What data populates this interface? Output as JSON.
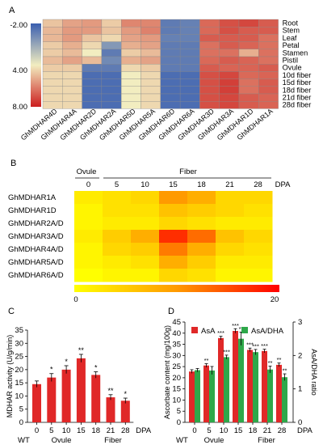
{
  "panels": {
    "a": "A",
    "b": "B",
    "c": "C",
    "d": "D"
  },
  "panel_a": {
    "colorbar_ticks": [
      "-2.00",
      "4.00",
      "8.00"
    ],
    "colorbar_colors": [
      "#3a5fb0",
      "#f2edc0",
      "#cc1e1e"
    ],
    "tissues": [
      "Root",
      "Stem",
      "Leaf",
      "Petal",
      "Stamen",
      "Pistil",
      "Ovule",
      "10d fiber",
      "15d fiber",
      "18d fiber",
      "21d fiber",
      "28d fiber"
    ],
    "genes": [
      "GhMDHAR4D",
      "GhMDHAR4A",
      "GhMDHAR2D",
      "GhMDHAR2A",
      "GhMDHAR5D",
      "GhMDHAR5A",
      "GhMDHAR6D",
      "GhMDHAR6A",
      "GhMDHAR3D",
      "GhMDHAR3A",
      "GhMDHAR1D",
      "GhMDHAR1A"
    ]
  },
  "panel_b": {
    "group_labels": [
      "Ovule",
      "Fiber"
    ],
    "dpa_label": "DPA",
    "dpa_ticks": [
      "0",
      "5",
      "10",
      "15",
      "18",
      "21",
      "28"
    ],
    "genes": [
      "GhMDHAR1A",
      "GhMDHAR1D",
      "GhMDHAR2A/D",
      "GhMDHAR3A/D",
      "GhMDHAR4A/D",
      "GhMDHAR5A/D",
      "GhMDHAR6A/D"
    ],
    "scale_min": "0",
    "scale_max": "20"
  },
  "chart_data": [
    {
      "type": "heatmap",
      "panel": "A",
      "rows": [
        "Root",
        "Stem",
        "Leaf",
        "Petal",
        "Stamen",
        "Pistil",
        "Ovule",
        "10d fiber",
        "15d fiber",
        "18d fiber",
        "21d fiber",
        "28d fiber"
      ],
      "columns": [
        "GhMDHAR4D",
        "GhMDHAR4A",
        "GhMDHAR2D",
        "GhMDHAR2A",
        "GhMDHAR5D",
        "GhMDHAR5A",
        "GhMDHAR6D",
        "GhMDHAR6A",
        "GhMDHAR3D",
        "GhMDHAR3A",
        "GhMDHAR1D",
        "GhMDHAR1A"
      ],
      "color_range": [
        -2,
        8
      ],
      "values": [
        [
          4.0,
          4.8,
          5.0,
          3.8,
          5.5,
          5.5,
          -1.0,
          -0.8,
          6.2,
          6.8,
          7.0,
          6.5
        ],
        [
          4.3,
          5.0,
          5.0,
          4.0,
          5.0,
          5.6,
          -1.0,
          -0.8,
          6.2,
          6.8,
          6.5,
          6.5
        ],
        [
          4.3,
          5.0,
          4.0,
          3.5,
          4.8,
          5.0,
          -0.8,
          -0.8,
          6.5,
          6.5,
          6.5,
          6.0
        ],
        [
          3.8,
          4.5,
          3.5,
          0.0,
          4.5,
          4.8,
          -1.0,
          -1.0,
          6.0,
          6.5,
          6.3,
          6.0
        ],
        [
          3.8,
          4.2,
          3.0,
          -1.0,
          3.8,
          4.2,
          -1.0,
          -1.0,
          6.0,
          6.0,
          4.5,
          6.0
        ],
        [
          4.2,
          4.8,
          4.2,
          -0.5,
          4.5,
          4.8,
          -1.0,
          -1.0,
          6.2,
          6.5,
          6.3,
          6.0
        ],
        [
          3.8,
          3.8,
          -1.0,
          -1.0,
          3.5,
          3.8,
          -1.0,
          -1.0,
          6.5,
          6.3,
          6.3,
          6.5
        ],
        [
          3.5,
          3.5,
          -1.5,
          -1.5,
          3.0,
          3.5,
          -1.5,
          -1.5,
          6.8,
          7.0,
          6.2,
          6.3
        ],
        [
          3.5,
          3.5,
          -1.5,
          -1.5,
          3.0,
          3.5,
          -1.5,
          -1.5,
          6.8,
          7.2,
          6.0,
          6.5
        ],
        [
          3.5,
          3.5,
          -1.5,
          -1.5,
          3.0,
          3.5,
          -1.5,
          -1.5,
          6.8,
          7.2,
          6.0,
          6.5
        ],
        [
          3.5,
          3.5,
          -1.5,
          -1.5,
          3.0,
          3.5,
          -1.5,
          -1.5,
          6.8,
          7.0,
          6.5,
          6.3
        ],
        [
          3.5,
          3.5,
          -1.5,
          -1.5,
          3.0,
          3.5,
          -1.5,
          -1.5,
          6.8,
          7.0,
          6.5,
          6.3
        ]
      ]
    },
    {
      "type": "heatmap",
      "panel": "B",
      "rows": [
        "GhMDHAR1A",
        "GhMDHAR1D",
        "GhMDHAR2A/D",
        "GhMDHAR3A/D",
        "GhMDHAR4A/D",
        "GhMDHAR5A/D",
        "GhMDHAR6A/D"
      ],
      "columns": [
        "0",
        "5",
        "10",
        "15",
        "18",
        "21",
        "28"
      ],
      "color_range": [
        0,
        20
      ],
      "values": [
        [
          2,
          3,
          4,
          10,
          8,
          4,
          4
        ],
        [
          1,
          3,
          3,
          6,
          5,
          4,
          3
        ],
        [
          1,
          2,
          2,
          4,
          3,
          2,
          2
        ],
        [
          2,
          5,
          8,
          17,
          13,
          6,
          4
        ],
        [
          1,
          4,
          5,
          12,
          8,
          4,
          3
        ],
        [
          1,
          2,
          3,
          8,
          5,
          2,
          2
        ],
        [
          0,
          1,
          1,
          4,
          3,
          1,
          1
        ]
      ]
    },
    {
      "type": "bar",
      "panel": "C",
      "ylabel": "MDHAR activity (U/g/min)",
      "ylim": [
        0,
        35
      ],
      "yticks": [
        "0",
        "5",
        "10",
        "15",
        "20",
        "25",
        "30",
        "35"
      ],
      "categories": [
        "0",
        "5",
        "10",
        "15",
        "18",
        "21",
        "28"
      ],
      "values": [
        14.5,
        17.0,
        20.0,
        24.3,
        18.0,
        9.5,
        8.2
      ],
      "errors": [
        1.2,
        1.5,
        1.5,
        1.5,
        1.2,
        1.0,
        1.0
      ],
      "significance": [
        "",
        "*",
        "*",
        "**",
        "*",
        "**",
        "*"
      ],
      "xlabel": "DPA",
      "group_labels": [
        "WT",
        "Ovule",
        "Fiber"
      ],
      "bar_color": "#e02828"
    },
    {
      "type": "bar",
      "panel": "D",
      "ylabel": "Ascorbate content (mg/100g)",
      "y2label": "AsA/DHA ratio",
      "ylim": [
        0,
        45
      ],
      "yticks": [
        "0",
        "5",
        "10",
        "15",
        "20",
        "25",
        "30",
        "35",
        "40",
        "45"
      ],
      "y2lim": [
        0,
        3
      ],
      "y2ticks": [
        "0",
        "1",
        "2",
        "3"
      ],
      "categories": [
        "0",
        "5",
        "10",
        "15",
        "18",
        "21",
        "28"
      ],
      "xlabel": "DPA",
      "group_labels": [
        "WT",
        "Ovule",
        "Fiber"
      ],
      "series": [
        {
          "name": "AsA",
          "color": "#e02828",
          "axis": "left",
          "values": [
            22.8,
            25.5,
            37.8,
            41.0,
            32.5,
            32.0,
            25.8
          ],
          "errors": [
            0.8,
            0.8,
            0.8,
            1.0,
            0.8,
            0.8,
            0.8
          ],
          "significance": [
            "",
            "**",
            "***",
            "***",
            "***",
            "***",
            "**"
          ]
        },
        {
          "name": "AsA/DHA",
          "color": "#2ea84a",
          "axis": "right",
          "values": [
            1.56,
            1.55,
            1.95,
            2.5,
            2.1,
            1.58,
            1.35
          ],
          "errors": [
            0.05,
            0.12,
            0.06,
            0.2,
            0.08,
            0.1,
            0.1
          ],
          "significance": [
            "",
            "",
            "***",
            "**",
            "***",
            "**",
            "**"
          ]
        }
      ]
    }
  ]
}
